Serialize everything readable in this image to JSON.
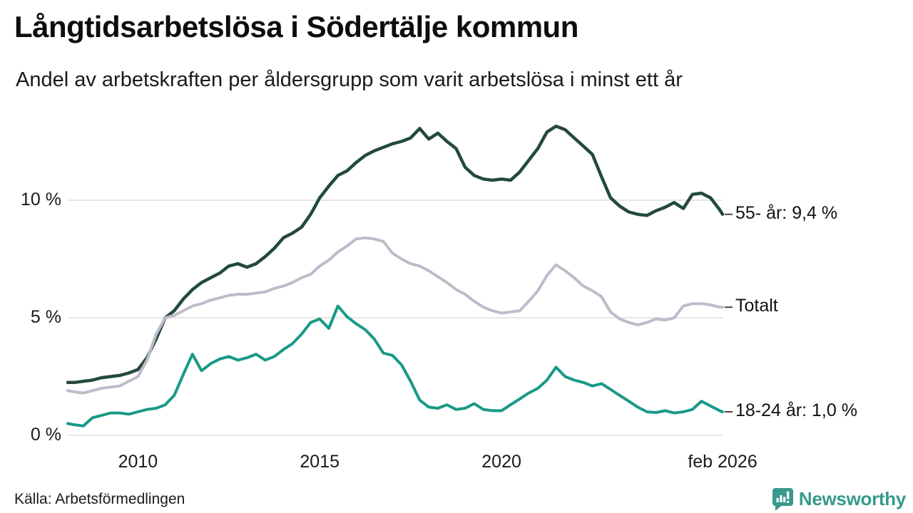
{
  "chart_data": {
    "type": "line",
    "title": "Långtidsarbetslösa i Södertälje kommun",
    "subtitle": "Andel av arbetskraften per åldersgrupp som varit arbetslösa i minst ett år",
    "xlabel": "",
    "ylabel": "",
    "xlim": [
      2008.07,
      2026.08
    ],
    "ylim": [
      0,
      13.8
    ],
    "grid": "horizontal",
    "legend": "line-end-labels",
    "x": [
      2008.07,
      2008.25,
      2008.5,
      2008.75,
      2009.0,
      2009.25,
      2009.5,
      2009.75,
      2010.0,
      2010.25,
      2010.5,
      2010.75,
      2011.0,
      2011.25,
      2011.5,
      2011.75,
      2012.0,
      2012.25,
      2012.5,
      2012.75,
      2013.0,
      2013.25,
      2013.5,
      2013.75,
      2014.0,
      2014.25,
      2014.5,
      2014.75,
      2015.0,
      2015.25,
      2015.5,
      2015.75,
      2016.0,
      2016.25,
      2016.5,
      2016.75,
      2017.0,
      2017.25,
      2017.5,
      2017.75,
      2018.0,
      2018.25,
      2018.5,
      2018.75,
      2019.0,
      2019.25,
      2019.5,
      2019.75,
      2020.0,
      2020.25,
      2020.5,
      2020.75,
      2021.0,
      2021.25,
      2021.5,
      2021.75,
      2022.0,
      2022.25,
      2022.5,
      2022.75,
      2023.0,
      2023.25,
      2023.5,
      2023.75,
      2024.0,
      2024.25,
      2024.5,
      2024.75,
      2025.0,
      2025.25,
      2025.5,
      2025.75,
      2026.0,
      2026.08
    ],
    "series": [
      {
        "name": "55- år",
        "end_label": "55- år: 9,4 %",
        "end_value_text": "9,4 %",
        "color": "#234a3c",
        "stroke_width": 4.5,
        "values": [
          2.25,
          2.25,
          2.3,
          2.35,
          2.45,
          2.5,
          2.55,
          2.65,
          2.8,
          3.3,
          4.1,
          5.0,
          5.3,
          5.8,
          6.2,
          6.5,
          6.7,
          6.9,
          7.2,
          7.3,
          7.15,
          7.3,
          7.6,
          7.95,
          8.4,
          8.6,
          8.85,
          9.4,
          10.1,
          10.6,
          11.05,
          11.25,
          11.6,
          11.9,
          12.1,
          12.25,
          12.4,
          12.5,
          12.65,
          13.05,
          12.6,
          12.85,
          12.5,
          12.2,
          11.4,
          11.05,
          10.9,
          10.85,
          10.9,
          10.85,
          11.2,
          11.7,
          12.2,
          12.9,
          13.15,
          13.0,
          12.65,
          12.3,
          11.95,
          11.0,
          10.1,
          9.75,
          9.5,
          9.4,
          9.35,
          9.55,
          9.7,
          9.9,
          9.65,
          10.25,
          10.3,
          10.1,
          9.6,
          9.4
        ]
      },
      {
        "name": "Totalt",
        "end_label": "Totalt",
        "end_value_text": "",
        "color": "#bdbcca",
        "stroke_width": 4,
        "values": [
          1.9,
          1.85,
          1.8,
          1.9,
          2.0,
          2.05,
          2.1,
          2.3,
          2.5,
          3.2,
          4.3,
          5.0,
          5.1,
          5.3,
          5.5,
          5.6,
          5.75,
          5.85,
          5.95,
          6.0,
          6.0,
          6.05,
          6.1,
          6.25,
          6.35,
          6.5,
          6.7,
          6.85,
          7.2,
          7.45,
          7.8,
          8.05,
          8.35,
          8.4,
          8.35,
          8.25,
          7.75,
          7.5,
          7.3,
          7.2,
          7.0,
          6.75,
          6.5,
          6.2,
          6.0,
          5.7,
          5.45,
          5.3,
          5.2,
          5.25,
          5.3,
          5.7,
          6.15,
          6.8,
          7.25,
          7.0,
          6.7,
          6.35,
          6.15,
          5.9,
          5.25,
          4.95,
          4.8,
          4.7,
          4.8,
          4.95,
          4.9,
          5.0,
          5.5,
          5.6,
          5.6,
          5.55,
          5.45,
          5.45
        ]
      },
      {
        "name": "18-24 år",
        "end_label": "18-24 år: 1,0 %",
        "end_value_text": "1,0 %",
        "color": "#189a87",
        "stroke_width": 4,
        "values": [
          0.5,
          0.45,
          0.4,
          0.75,
          0.85,
          0.95,
          0.95,
          0.9,
          1.0,
          1.1,
          1.15,
          1.3,
          1.7,
          2.6,
          3.45,
          2.75,
          3.05,
          3.25,
          3.35,
          3.2,
          3.3,
          3.45,
          3.2,
          3.35,
          3.65,
          3.9,
          4.3,
          4.8,
          4.95,
          4.55,
          5.5,
          5.05,
          4.75,
          4.5,
          4.1,
          3.5,
          3.4,
          3.0,
          2.3,
          1.5,
          1.2,
          1.15,
          1.3,
          1.1,
          1.15,
          1.35,
          1.1,
          1.05,
          1.05,
          1.3,
          1.55,
          1.8,
          2.0,
          2.35,
          2.9,
          2.5,
          2.35,
          2.25,
          2.1,
          2.2,
          1.95,
          1.7,
          1.45,
          1.2,
          1.0,
          0.97,
          1.05,
          0.95,
          1.0,
          1.1,
          1.45,
          1.25,
          1.05,
          1.0
        ]
      }
    ],
    "yticks": [
      {
        "value": 0,
        "label": "0 %"
      },
      {
        "value": 5,
        "label": "5 %"
      },
      {
        "value": 10,
        "label": "10 %"
      }
    ],
    "xticks": [
      {
        "value": 2010,
        "label": "2010"
      },
      {
        "value": 2015,
        "label": "2015"
      },
      {
        "value": 2020,
        "label": "2020"
      },
      {
        "value": 2026.08,
        "label": "feb 2026"
      }
    ],
    "gridline_color": "#e6e6e6",
    "leader_tick_color": "#444444"
  },
  "footer": {
    "source": "Källa: Arbetsförmedlingen",
    "brand": "Newsworthy",
    "brand_color": "#37998c"
  }
}
